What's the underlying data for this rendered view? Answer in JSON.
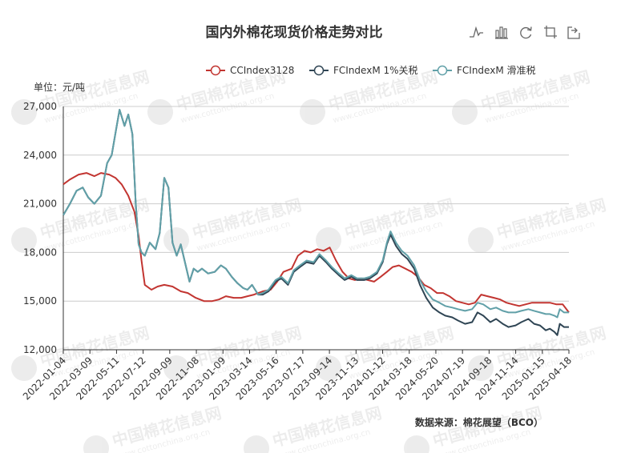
{
  "chart_data": {
    "type": "line",
    "title": "国内外棉花现货价格走势对比",
    "unit_label": "单位：元/吨",
    "source": "数据来源：棉花展望（BCO）",
    "ylim": [
      12000,
      27000
    ],
    "yticks": [
      12000,
      15000,
      18000,
      21000,
      24000,
      27000
    ],
    "ytick_labels": [
      "12,000",
      "15,000",
      "18,000",
      "21,000",
      "24,000",
      "27,000"
    ],
    "x_start": "2022-01-04",
    "x_end": "2025-05-10",
    "xtick_labels": [
      "2022-01-04",
      "2022-03-09",
      "2022-05-11",
      "2022-07-12",
      "2022-09-09",
      "2022-11-08",
      "2023-01-09",
      "2023-03-14",
      "2023-05-16",
      "2023-07-17",
      "2023-09-14",
      "2023-11-13",
      "2024-01-12",
      "2024-03-18",
      "2024-05-20",
      "2024-07-19",
      "2024-09-18",
      "2024-11-14",
      "2025-01-15",
      "2025-04-18"
    ],
    "legend_position": "top-right",
    "grid": true,
    "series": [
      {
        "name": "CCIndex3128",
        "color": "#c23531",
        "points": [
          [
            "2022-01-04",
            22200
          ],
          [
            "2022-01-20",
            22500
          ],
          [
            "2022-02-10",
            22800
          ],
          [
            "2022-03-01",
            22900
          ],
          [
            "2022-03-20",
            22700
          ],
          [
            "2022-04-05",
            22900
          ],
          [
            "2022-04-25",
            22800
          ],
          [
            "2022-05-10",
            22600
          ],
          [
            "2022-05-25",
            22200
          ],
          [
            "2022-06-10",
            21500
          ],
          [
            "2022-06-25",
            20500
          ],
          [
            "2022-07-05",
            19000
          ],
          [
            "2022-07-12",
            17500
          ],
          [
            "2022-07-20",
            16000
          ],
          [
            "2022-08-05",
            15700
          ],
          [
            "2022-08-20",
            15900
          ],
          [
            "2022-09-05",
            16000
          ],
          [
            "2022-09-25",
            15900
          ],
          [
            "2022-10-15",
            15600
          ],
          [
            "2022-11-01",
            15500
          ],
          [
            "2022-11-20",
            15200
          ],
          [
            "2022-12-10",
            15000
          ],
          [
            "2022-12-30",
            15000
          ],
          [
            "2023-01-15",
            15100
          ],
          [
            "2023-02-01",
            15300
          ],
          [
            "2023-02-20",
            15200
          ],
          [
            "2023-03-10",
            15200
          ],
          [
            "2023-03-25",
            15300
          ],
          [
            "2023-04-10",
            15400
          ],
          [
            "2023-05-01",
            15600
          ],
          [
            "2023-05-20",
            15700
          ],
          [
            "2023-06-05",
            16200
          ],
          [
            "2023-06-20",
            16800
          ],
          [
            "2023-07-10",
            17000
          ],
          [
            "2023-07-25",
            17800
          ],
          [
            "2023-08-10",
            18100
          ],
          [
            "2023-08-25",
            18000
          ],
          [
            "2023-09-10",
            18200
          ],
          [
            "2023-09-25",
            18100
          ],
          [
            "2023-10-10",
            18300
          ],
          [
            "2023-10-25",
            17500
          ],
          [
            "2023-11-10",
            16800
          ],
          [
            "2023-11-25",
            16400
          ],
          [
            "2023-12-10",
            16300
          ],
          [
            "2023-12-25",
            16400
          ],
          [
            "2024-01-10",
            16300
          ],
          [
            "2024-01-25",
            16200
          ],
          [
            "2024-02-10",
            16500
          ],
          [
            "2024-02-25",
            16800
          ],
          [
            "2024-03-10",
            17100
          ],
          [
            "2024-03-25",
            17200
          ],
          [
            "2024-04-10",
            17000
          ],
          [
            "2024-04-25",
            16800
          ],
          [
            "2024-05-10",
            16500
          ],
          [
            "2024-05-25",
            16000
          ],
          [
            "2024-06-10",
            15800
          ],
          [
            "2024-06-25",
            15500
          ],
          [
            "2024-07-10",
            15500
          ],
          [
            "2024-07-25",
            15300
          ],
          [
            "2024-08-10",
            15000
          ],
          [
            "2024-08-25",
            14900
          ],
          [
            "2024-09-10",
            14800
          ],
          [
            "2024-09-25",
            14900
          ],
          [
            "2024-10-10",
            15400
          ],
          [
            "2024-10-25",
            15300
          ],
          [
            "2024-11-10",
            15200
          ],
          [
            "2024-11-25",
            15100
          ],
          [
            "2024-12-10",
            14900
          ],
          [
            "2024-12-25",
            14800
          ],
          [
            "2025-01-10",
            14700
          ],
          [
            "2025-01-25",
            14800
          ],
          [
            "2025-02-10",
            14900
          ],
          [
            "2025-02-25",
            14900
          ],
          [
            "2025-03-10",
            14900
          ],
          [
            "2025-03-25",
            14900
          ],
          [
            "2025-04-10",
            14800
          ],
          [
            "2025-04-25",
            14800
          ],
          [
            "2025-05-10",
            14300
          ]
        ]
      },
      {
        "name": "FCIndexM 1%关税",
        "color": "#2f4554",
        "points": [
          [
            "2022-01-04",
            20300
          ],
          [
            "2022-01-20",
            21000
          ],
          [
            "2022-02-05",
            21800
          ],
          [
            "2022-02-20",
            22000
          ],
          [
            "2022-03-05",
            21400
          ],
          [
            "2022-03-20",
            21000
          ],
          [
            "2022-04-05",
            21500
          ],
          [
            "2022-04-20",
            23500
          ],
          [
            "2022-05-01",
            24000
          ],
          [
            "2022-05-11",
            25500
          ],
          [
            "2022-05-20",
            26800
          ],
          [
            "2022-06-01",
            25800
          ],
          [
            "2022-06-10",
            26500
          ],
          [
            "2022-06-20",
            25300
          ],
          [
            "2022-06-28",
            21000
          ],
          [
            "2022-07-05",
            18500
          ],
          [
            "2022-07-12",
            18000
          ],
          [
            "2022-07-20",
            17800
          ],
          [
            "2022-08-01",
            18600
          ],
          [
            "2022-08-15",
            18200
          ],
          [
            "2022-08-25",
            19200
          ],
          [
            "2022-09-05",
            22600
          ],
          [
            "2022-09-15",
            22000
          ],
          [
            "2022-09-25",
            18600
          ],
          [
            "2022-10-05",
            17800
          ],
          [
            "2022-10-15",
            18500
          ],
          [
            "2022-10-25",
            17400
          ],
          [
            "2022-11-05",
            16200
          ],
          [
            "2022-11-15",
            17000
          ],
          [
            "2022-11-25",
            16800
          ],
          [
            "2022-12-05",
            17000
          ],
          [
            "2022-12-20",
            16700
          ],
          [
            "2023-01-05",
            16800
          ],
          [
            "2023-01-20",
            17200
          ],
          [
            "2023-02-01",
            17000
          ],
          [
            "2023-02-15",
            16500
          ],
          [
            "2023-03-01",
            16100
          ],
          [
            "2023-03-15",
            15800
          ],
          [
            "2023-03-25",
            15700
          ],
          [
            "2023-04-05",
            16000
          ],
          [
            "2023-04-20",
            15400
          ],
          [
            "2023-05-01",
            15400
          ],
          [
            "2023-05-15",
            15600
          ],
          [
            "2023-06-01",
            16200
          ],
          [
            "2023-06-15",
            16400
          ],
          [
            "2023-07-01",
            16000
          ],
          [
            "2023-07-15",
            16800
          ],
          [
            "2023-07-30",
            17100
          ],
          [
            "2023-08-15",
            17400
          ],
          [
            "2023-09-01",
            17300
          ],
          [
            "2023-09-15",
            17800
          ],
          [
            "2023-10-01",
            17400
          ],
          [
            "2023-10-15",
            17000
          ],
          [
            "2023-11-01",
            16600
          ],
          [
            "2023-11-15",
            16300
          ],
          [
            "2023-12-01",
            16500
          ],
          [
            "2023-12-15",
            16300
          ],
          [
            "2024-01-01",
            16300
          ],
          [
            "2024-01-15",
            16400
          ],
          [
            "2024-02-01",
            16700
          ],
          [
            "2024-02-15",
            17400
          ],
          [
            "2024-02-25",
            18500
          ],
          [
            "2024-03-05",
            19100
          ],
          [
            "2024-03-18",
            18400
          ],
          [
            "2024-04-01",
            17900
          ],
          [
            "2024-04-15",
            17600
          ],
          [
            "2024-05-01",
            17000
          ],
          [
            "2024-05-15",
            16000
          ],
          [
            "2024-05-30",
            15200
          ],
          [
            "2024-06-15",
            14600
          ],
          [
            "2024-07-01",
            14300
          ],
          [
            "2024-07-15",
            14100
          ],
          [
            "2024-08-01",
            14000
          ],
          [
            "2024-08-15",
            13800
          ],
          [
            "2024-09-01",
            13600
          ],
          [
            "2024-09-18",
            13700
          ],
          [
            "2024-10-01",
            14300
          ],
          [
            "2024-10-15",
            14100
          ],
          [
            "2024-11-01",
            13700
          ],
          [
            "2024-11-15",
            13900
          ],
          [
            "2024-12-01",
            13600
          ],
          [
            "2024-12-15",
            13400
          ],
          [
            "2025-01-01",
            13500
          ],
          [
            "2025-01-15",
            13700
          ],
          [
            "2025-02-01",
            13900
          ],
          [
            "2025-02-15",
            13600
          ],
          [
            "2025-03-01",
            13500
          ],
          [
            "2025-03-15",
            13200
          ],
          [
            "2025-03-25",
            13300
          ],
          [
            "2025-04-05",
            13100
          ],
          [
            "2025-04-12",
            12900
          ],
          [
            "2025-04-18",
            13600
          ],
          [
            "2025-04-28",
            13400
          ],
          [
            "2025-05-10",
            13400
          ]
        ]
      },
      {
        "name": "FCIndexM 滑准税",
        "color": "#61a0a8",
        "points": [
          [
            "2022-01-04",
            20300
          ],
          [
            "2022-01-20",
            21000
          ],
          [
            "2022-02-05",
            21800
          ],
          [
            "2022-02-20",
            22000
          ],
          [
            "2022-03-05",
            21400
          ],
          [
            "2022-03-20",
            21000
          ],
          [
            "2022-04-05",
            21500
          ],
          [
            "2022-04-20",
            23500
          ],
          [
            "2022-05-01",
            24000
          ],
          [
            "2022-05-11",
            25500
          ],
          [
            "2022-05-20",
            26800
          ],
          [
            "2022-06-01",
            25800
          ],
          [
            "2022-06-10",
            26500
          ],
          [
            "2022-06-20",
            25300
          ],
          [
            "2022-06-28",
            21000
          ],
          [
            "2022-07-05",
            18500
          ],
          [
            "2022-07-12",
            18000
          ],
          [
            "2022-07-20",
            17800
          ],
          [
            "2022-08-01",
            18600
          ],
          [
            "2022-08-15",
            18200
          ],
          [
            "2022-08-25",
            19200
          ],
          [
            "2022-09-05",
            22600
          ],
          [
            "2022-09-15",
            22000
          ],
          [
            "2022-09-25",
            18600
          ],
          [
            "2022-10-05",
            17800
          ],
          [
            "2022-10-15",
            18500
          ],
          [
            "2022-10-25",
            17400
          ],
          [
            "2022-11-05",
            16200
          ],
          [
            "2022-11-15",
            17000
          ],
          [
            "2022-11-25",
            16800
          ],
          [
            "2022-12-05",
            17000
          ],
          [
            "2022-12-20",
            16700
          ],
          [
            "2023-01-05",
            16800
          ],
          [
            "2023-01-20",
            17200
          ],
          [
            "2023-02-01",
            17000
          ],
          [
            "2023-02-15",
            16500
          ],
          [
            "2023-03-01",
            16100
          ],
          [
            "2023-03-15",
            15800
          ],
          [
            "2023-03-25",
            15700
          ],
          [
            "2023-04-05",
            16000
          ],
          [
            "2023-04-20",
            15400
          ],
          [
            "2023-05-01",
            15500
          ],
          [
            "2023-05-15",
            15700
          ],
          [
            "2023-06-01",
            16300
          ],
          [
            "2023-06-15",
            16500
          ],
          [
            "2023-07-01",
            16100
          ],
          [
            "2023-07-15",
            16900
          ],
          [
            "2023-07-30",
            17200
          ],
          [
            "2023-08-15",
            17500
          ],
          [
            "2023-09-01",
            17400
          ],
          [
            "2023-09-15",
            17900
          ],
          [
            "2023-10-01",
            17500
          ],
          [
            "2023-10-15",
            17100
          ],
          [
            "2023-11-01",
            16700
          ],
          [
            "2023-11-15",
            16400
          ],
          [
            "2023-12-01",
            16600
          ],
          [
            "2023-12-15",
            16400
          ],
          [
            "2024-01-01",
            16400
          ],
          [
            "2024-01-15",
            16500
          ],
          [
            "2024-02-01",
            16800
          ],
          [
            "2024-02-15",
            17500
          ],
          [
            "2024-02-25",
            18600
          ],
          [
            "2024-03-05",
            19300
          ],
          [
            "2024-03-18",
            18600
          ],
          [
            "2024-04-01",
            18100
          ],
          [
            "2024-04-15",
            17800
          ],
          [
            "2024-05-01",
            17200
          ],
          [
            "2024-05-15",
            16300
          ],
          [
            "2024-05-30",
            15600
          ],
          [
            "2024-06-15",
            15100
          ],
          [
            "2024-07-01",
            14900
          ],
          [
            "2024-07-15",
            14700
          ],
          [
            "2024-08-01",
            14600
          ],
          [
            "2024-08-15",
            14500
          ],
          [
            "2024-09-01",
            14400
          ],
          [
            "2024-09-18",
            14500
          ],
          [
            "2024-10-01",
            14900
          ],
          [
            "2024-10-15",
            14800
          ],
          [
            "2024-11-01",
            14500
          ],
          [
            "2024-11-15",
            14600
          ],
          [
            "2024-12-01",
            14400
          ],
          [
            "2024-12-15",
            14300
          ],
          [
            "2025-01-01",
            14300
          ],
          [
            "2025-01-15",
            14400
          ],
          [
            "2025-02-01",
            14500
          ],
          [
            "2025-02-15",
            14400
          ],
          [
            "2025-03-01",
            14300
          ],
          [
            "2025-03-15",
            14200
          ],
          [
            "2025-03-25",
            14200
          ],
          [
            "2025-04-05",
            14100
          ],
          [
            "2025-04-12",
            14000
          ],
          [
            "2025-04-18",
            14500
          ],
          [
            "2025-04-28",
            14300
          ],
          [
            "2025-05-10",
            14300
          ]
        ]
      }
    ]
  },
  "toolbox": {
    "icons": [
      "line-icon",
      "bar-icon",
      "restore-icon",
      "crop-icon",
      "export-icon"
    ]
  },
  "watermark": {
    "text": "中国棉花信息网",
    "url": "www.cottonchina.org.cn"
  }
}
